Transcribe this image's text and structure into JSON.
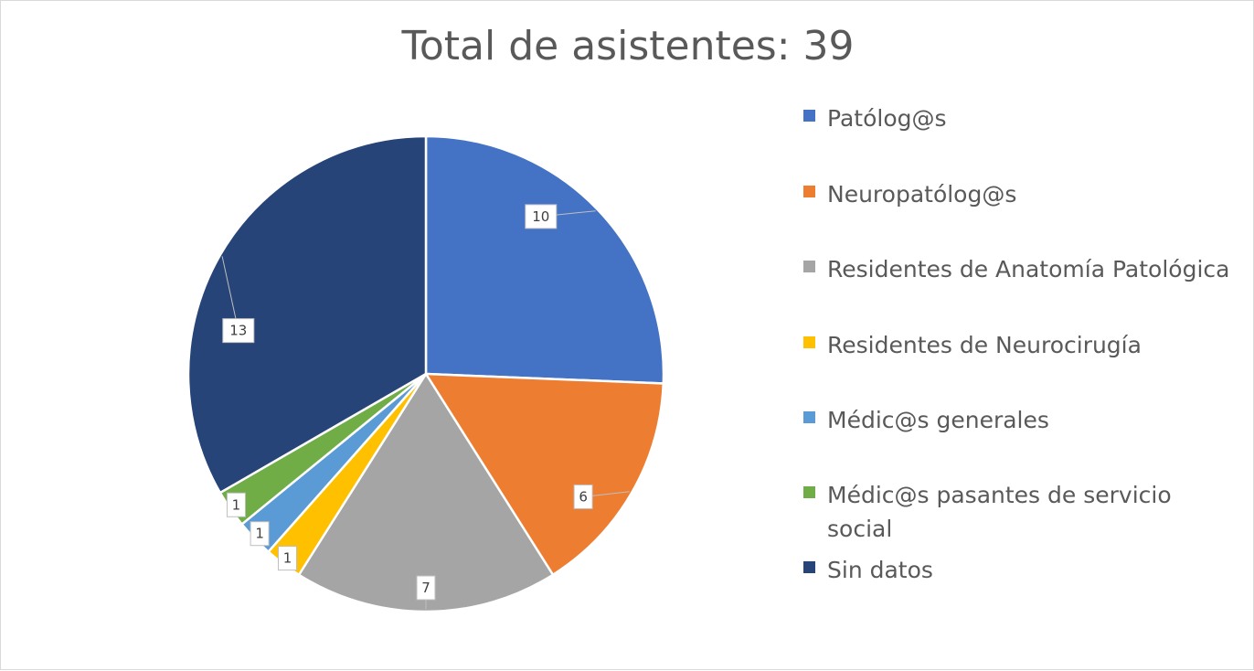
{
  "chart_data": {
    "type": "pie",
    "title": "Total de asistentes: 39",
    "categories": [
      "Patólog@s",
      "Neuropatólog@s",
      "Residentes de Anatomía Patológica",
      "Residentes de Neurocirugía",
      "Médic@s generales",
      "Médic@s pasantes de servicio social",
      "Sin datos"
    ],
    "values": [
      10,
      6,
      7,
      1,
      1,
      1,
      13
    ],
    "colors": [
      "#4472C4",
      "#ED7D31",
      "#A5A5A5",
      "#FFC000",
      "#5B9BD5",
      "#70AD47",
      "#264478"
    ],
    "data_labels": [
      "10",
      "6",
      "7",
      "1",
      "1",
      "1",
      "13"
    ],
    "legend_position": "right",
    "start_angle_deg": 0,
    "direction": "clockwise"
  }
}
